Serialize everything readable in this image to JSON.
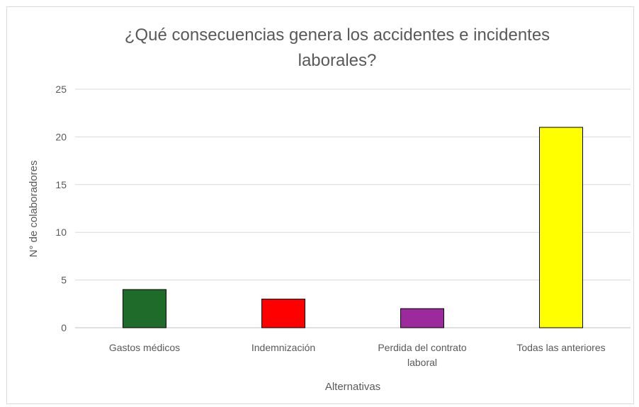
{
  "chart_data": {
    "type": "bar",
    "title": "¿Qué consecuencias genera los accidentes e incidentes laborales?",
    "title_lines": [
      "¿Qué consecuencias genera los accidentes e incidentes",
      "laborales?"
    ],
    "xlabel": "Alternativas",
    "ylabel": "N° de colaboradores",
    "categories": [
      "Gastos médicos",
      "Indemnización",
      "Perdida del contrato laboral",
      "Todas las anteriores"
    ],
    "category_lines": [
      [
        "Gastos médicos"
      ],
      [
        "Indemnización"
      ],
      [
        "Perdida del contrato",
        "laboral"
      ],
      [
        "Todas las anteriores"
      ]
    ],
    "values": [
      4,
      3,
      2,
      21
    ],
    "colors": [
      "#1e6b2a",
      "#ff0000",
      "#9c2a9c",
      "#ffff00"
    ],
    "ylim": [
      0,
      25
    ],
    "yticks": [
      0,
      5,
      10,
      15,
      20,
      25
    ],
    "grid": true,
    "legend": "none"
  }
}
